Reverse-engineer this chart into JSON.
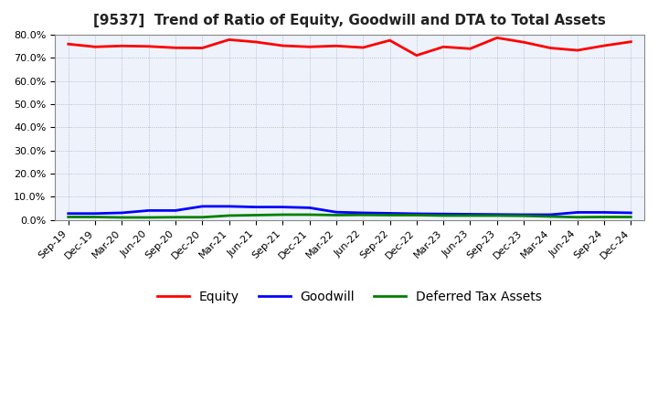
{
  "title": "[9537]  Trend of Ratio of Equity, Goodwill and DTA to Total Assets",
  "ylim": [
    0.0,
    0.8
  ],
  "yticks": [
    0.0,
    0.1,
    0.2,
    0.3,
    0.4,
    0.5,
    0.6,
    0.7,
    0.8
  ],
  "ytick_labels": [
    "0.0%",
    "10.0%",
    "20.0%",
    "30.0%",
    "40.0%",
    "50.0%",
    "60.0%",
    "70.0%",
    "80.0%"
  ],
  "background_color": "#ffffff",
  "plot_bg_color": "#eef3fb",
  "grid_color": "#aaaacc",
  "dates": [
    "Sep-19",
    "Dec-19",
    "Mar-20",
    "Jun-20",
    "Sep-20",
    "Dec-20",
    "Mar-21",
    "Jun-21",
    "Sep-21",
    "Dec-21",
    "Mar-22",
    "Jun-22",
    "Sep-22",
    "Dec-22",
    "Mar-23",
    "Jun-23",
    "Sep-23",
    "Dec-23",
    "Mar-24",
    "Jun-24",
    "Sep-24",
    "Dec-24"
  ],
  "equity": [
    0.76,
    0.748,
    0.752,
    0.75,
    0.744,
    0.743,
    0.779,
    0.769,
    0.753,
    0.748,
    0.752,
    0.745,
    0.776,
    0.711,
    0.748,
    0.74,
    0.787,
    0.768,
    0.743,
    0.733,
    0.753,
    0.77
  ],
  "goodwill": [
    0.027,
    0.027,
    0.03,
    0.04,
    0.04,
    0.058,
    0.058,
    0.055,
    0.055,
    0.052,
    0.033,
    0.03,
    0.028,
    0.026,
    0.025,
    0.024,
    0.023,
    0.022,
    0.022,
    0.032,
    0.032,
    0.03
  ],
  "dta": [
    0.012,
    0.012,
    0.01,
    0.01,
    0.011,
    0.011,
    0.018,
    0.02,
    0.022,
    0.022,
    0.02,
    0.021,
    0.02,
    0.02,
    0.018,
    0.018,
    0.018,
    0.017,
    0.014,
    0.011,
    0.012,
    0.012
  ],
  "equity_color": "#ff0000",
  "goodwill_color": "#0000ff",
  "dta_color": "#008000",
  "line_width": 2.0,
  "title_fontsize": 11,
  "tick_fontsize": 8,
  "legend_fontsize": 10
}
